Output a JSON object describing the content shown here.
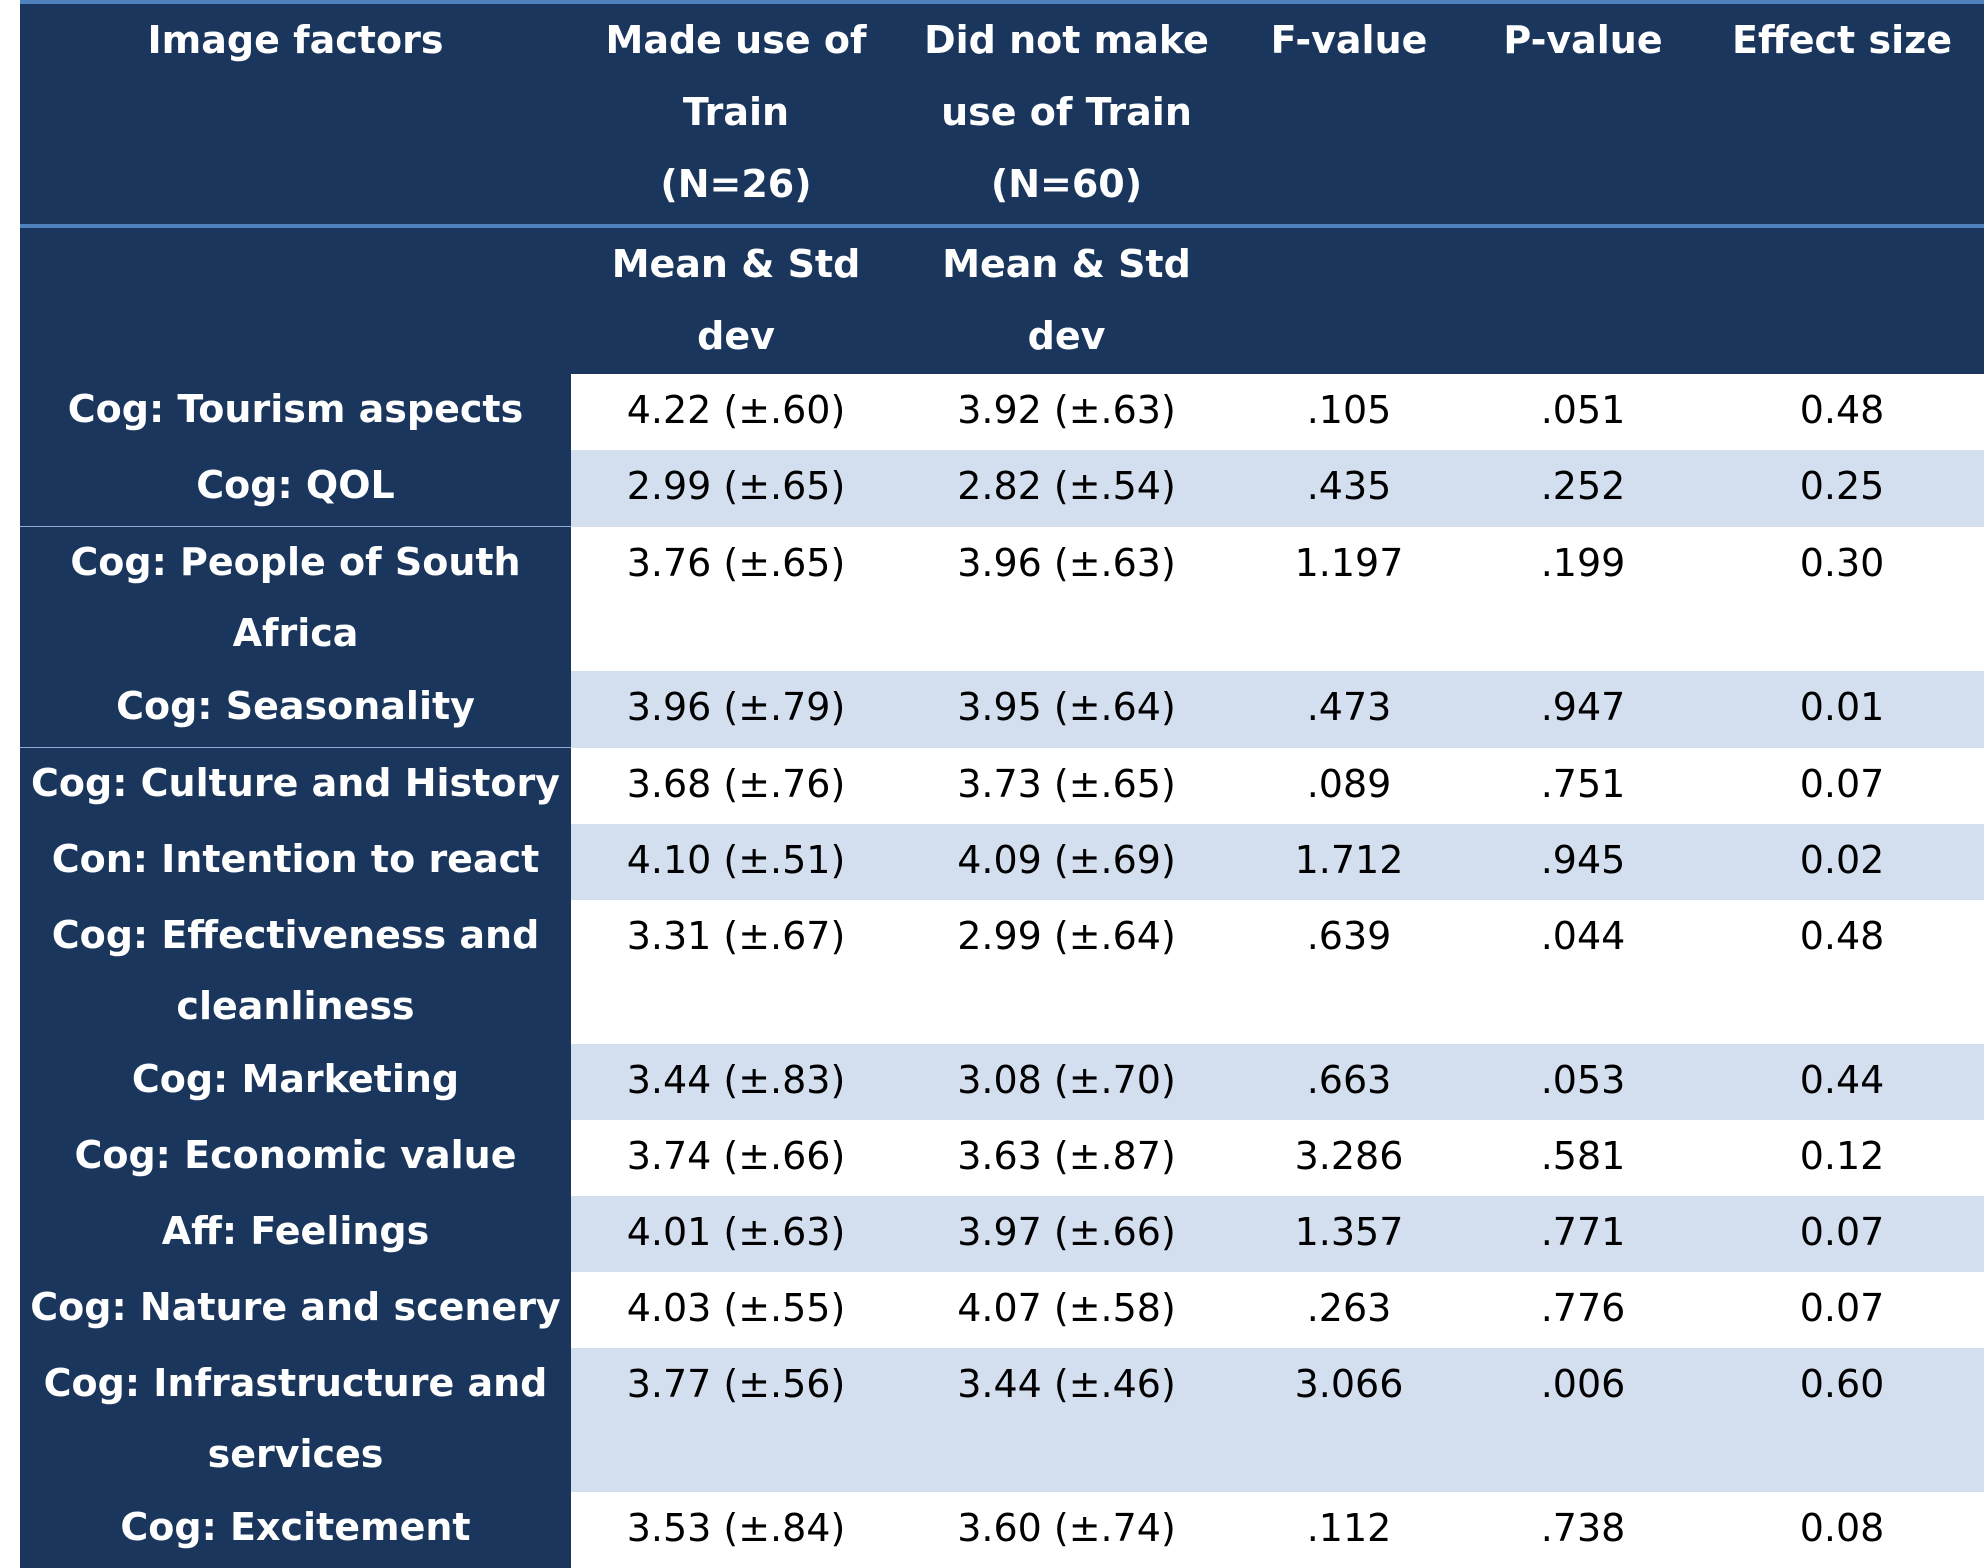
{
  "headers": {
    "factor": "Image factors",
    "used": [
      "Made use of",
      "Train",
      "(N=26)"
    ],
    "not_used": [
      "Did not make",
      "use of Train",
      "(N=60)"
    ],
    "f_value": "F-value",
    "p_value": "P-value",
    "effect_size": "Effect size",
    "used_sub": [
      "Mean & Std",
      "dev"
    ],
    "not_used_sub": [
      "Mean & Std",
      "dev"
    ]
  },
  "rows": [
    {
      "factor": [
        "Cog: Tourism aspects"
      ],
      "used": "4.22 (±.60)",
      "not_used": "3.92 (±.63)",
      "f": ".105",
      "p": ".051",
      "es": "0.48"
    },
    {
      "factor": [
        "Cog: QOL"
      ],
      "used": "2.99 (±.65)",
      "not_used": "2.82 (±.54)",
      "f": ".435",
      "p": ".252",
      "es": "0.25"
    },
    {
      "factor": [
        "Cog: People of South",
        "Africa"
      ],
      "used": "3.76 (±.65)",
      "not_used": "3.96 (±.63)",
      "f": "1.197",
      "p": ".199",
      "es": "0.30"
    },
    {
      "factor": [
        "Cog: Seasonality"
      ],
      "used": "3.96 (±.79)",
      "not_used": "3.95 (±.64)",
      "f": ".473",
      "p": ".947",
      "es": "0.01"
    },
    {
      "factor": [
        "Cog: Culture and History"
      ],
      "used": "3.68 (±.76)",
      "not_used": "3.73 (±.65)",
      "f": ".089",
      "p": ".751",
      "es": "0.07"
    },
    {
      "factor": [
        "Con: Intention to react"
      ],
      "used": "4.10 (±.51)",
      "not_used": "4.09 (±.69)",
      "f": "1.712",
      "p": ".945",
      "es": "0.02"
    },
    {
      "factor": [
        "Cog: Effectiveness and",
        "cleanliness"
      ],
      "used": "3.31 (±.67)",
      "not_used": "2.99 (±.64)",
      "f": ".639",
      "p": ".044",
      "es": "0.48"
    },
    {
      "factor": [
        "Cog: Marketing"
      ],
      "used": "3.44 (±.83)",
      "not_used": "3.08 (±.70)",
      "f": ".663",
      "p": ".053",
      "es": "0.44"
    },
    {
      "factor": [
        "Cog: Economic value"
      ],
      "used": "3.74 (±.66)",
      "not_used": "3.63 (±.87)",
      "f": "3.286",
      "p": ".581",
      "es": "0.12"
    },
    {
      "factor": [
        "Aff: Feelings"
      ],
      "used": "4.01 (±.63)",
      "not_used": "3.97 (±.66)",
      "f": "1.357",
      "p": ".771",
      "es": "0.07"
    },
    {
      "factor": [
        "Cog: Nature and scenery"
      ],
      "used": "4.03 (±.55)",
      "not_used": "4.07 (±.58)",
      "f": ".263",
      "p": ".776",
      "es": "0.07"
    },
    {
      "factor": [
        "Cog: Infrastructure and",
        "services"
      ],
      "used": "3.77 (±.56)",
      "not_used": "3.44 (±.46)",
      "f": "3.066",
      "p": ".006",
      "es": "0.60"
    },
    {
      "factor": [
        "Cog: Excitement"
      ],
      "used": "3.53 (±.84)",
      "not_used": "3.60 (±.74)",
      "f": ".112",
      "p": ".738",
      "es": "0.08"
    }
  ],
  "colors": {
    "header_bg": "#1a365d",
    "band_bg": "#d3deee",
    "header_rule": "#4f81bd"
  }
}
